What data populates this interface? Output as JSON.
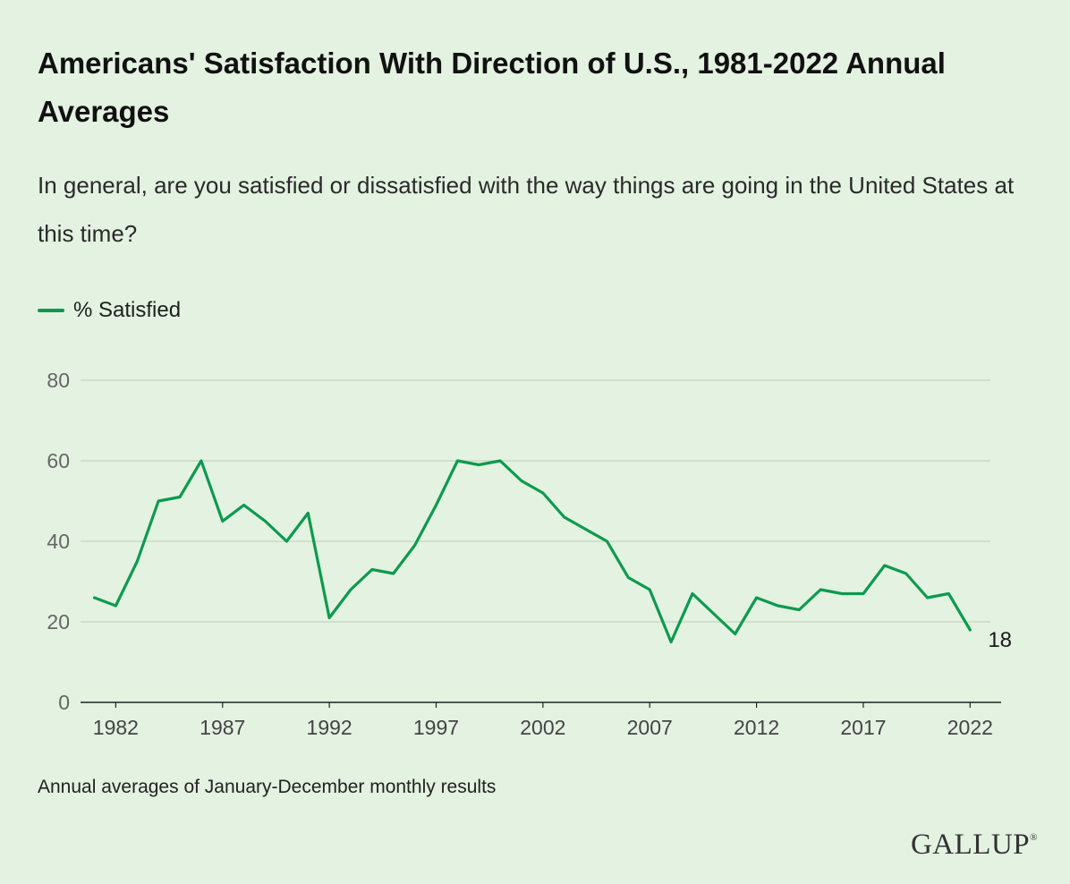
{
  "title": "Americans' Satisfaction With Direction of U.S., 1981-2022 Annual Averages",
  "subtitle": "In general, are you satisfied or dissatisfied with the way things are going in the United States at this time?",
  "legend_label": "% Satisfied",
  "footnote": "Annual averages of January-December monthly results",
  "brand": "GALLUP",
  "brand_mark": "®",
  "colors": {
    "line": "#0c9a4e",
    "background": "#e3f2e1",
    "grid": "#c5d6c2",
    "axis": "#222222"
  },
  "chart_data": {
    "type": "line",
    "title": "Americans' Satisfaction With Direction of U.S., 1981-2022",
    "xlabel": "",
    "ylabel": "",
    "ylim": [
      0,
      80
    ],
    "yticks": [
      0,
      20,
      40,
      60,
      80
    ],
    "xticks": [
      1982,
      1987,
      1992,
      1997,
      2002,
      2007,
      2012,
      2017,
      2022
    ],
    "grid": true,
    "legend": "top-left",
    "series": [
      {
        "name": "% Satisfied",
        "x": [
          1981,
          1982,
          1983,
          1984,
          1985,
          1986,
          1987,
          1988,
          1989,
          1990,
          1991,
          1992,
          1993,
          1994,
          1995,
          1996,
          1997,
          1998,
          1999,
          2000,
          2001,
          2002,
          2003,
          2004,
          2005,
          2006,
          2007,
          2008,
          2009,
          2010,
          2011,
          2012,
          2013,
          2014,
          2015,
          2016,
          2017,
          2018,
          2019,
          2020,
          2021,
          2022
        ],
        "values": [
          26,
          24,
          35,
          50,
          51,
          60,
          45,
          49,
          45,
          40,
          47,
          21,
          28,
          33,
          32,
          39,
          49,
          60,
          59,
          60,
          55,
          52,
          46,
          43,
          40,
          31,
          28,
          15,
          27,
          22,
          17,
          26,
          24,
          23,
          28,
          27,
          27,
          34,
          32,
          26,
          27,
          18
        ]
      }
    ],
    "end_label": "18"
  }
}
